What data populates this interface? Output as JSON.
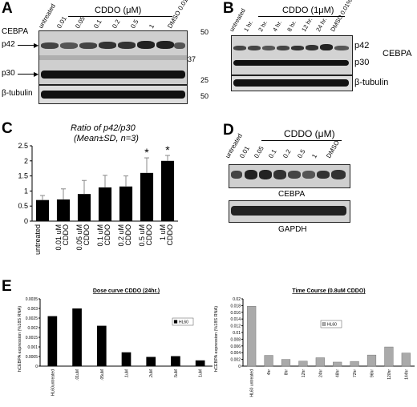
{
  "panels": {
    "A": {
      "letter": "A",
      "treatment_header": "CDDO (μM)",
      "lane_labels": [
        "untreated",
        "0.01",
        "0.05",
        "0.1",
        "0.2",
        "0.5",
        "1",
        "DMSO 0.01%"
      ],
      "protein_label": "CEBPA",
      "band_labels": [
        "p42",
        "p30",
        "β-tubulin"
      ],
      "markers": [
        "50",
        "37",
        "25",
        "50"
      ]
    },
    "B": {
      "letter": "B",
      "treatment_header": "CDDO (1μM)",
      "lane_labels": [
        "untreated",
        "1 hr.",
        "2 hr.",
        "4 hr.",
        "8 hr.",
        "12 hr.",
        "24 hr.",
        "DMSO 0.01%"
      ],
      "band_labels": [
        "p42",
        "p30",
        "β-tubulin"
      ],
      "protein_label": "CEBPA"
    },
    "C": {
      "letter": "C",
      "title_line1": "Ratio of p42/p30",
      "title_line2": "(Mean±SD, n=3)"
    },
    "D": {
      "letter": "D",
      "treatment_header": "CDDO (μM)",
      "lane_labels": [
        "untreated",
        "0.01",
        "0.05",
        "0.1",
        "0.2",
        "0.5",
        "1",
        "DMSO"
      ],
      "blot_labels": [
        "CEBPA",
        "GAPDH"
      ]
    },
    "E": {
      "letter": "E"
    }
  },
  "chart_data": [
    {
      "type": "bar",
      "title": "Ratio of p42/p30 (Mean±SD, n=3)",
      "categories": [
        "untreated",
        "0.01 uM CDDO",
        "0.05 uM CDDO",
        "0.1 uM CDDO",
        "0.2 uM CDDO",
        "0.5 uM CDDO",
        "1 uM CDDO"
      ],
      "values": [
        0.7,
        0.72,
        0.9,
        1.12,
        1.15,
        1.6,
        2.0
      ],
      "errors": [
        0.15,
        0.35,
        0.45,
        0.4,
        0.35,
        0.5,
        0.18
      ],
      "significant": [
        "",
        "",
        "",
        "",
        "",
        "*",
        "*"
      ],
      "ylim": [
        0,
        2.5
      ],
      "yticks": [
        "0",
        "0.5",
        "1",
        "1.5",
        "2",
        "2.5"
      ],
      "color": "#000000"
    },
    {
      "type": "bar",
      "title": "Dose curve CDDO (24hr.)",
      "categories": [
        "HL60untreated",
        ".01uM",
        ".05uM",
        ".1uM",
        ".2uM",
        ".5uM",
        "1uM"
      ],
      "values": [
        0.0026,
        0.003,
        0.0021,
        0.00072,
        0.00048,
        0.00052,
        0.0003
      ],
      "ylabel": "hCEBPA expression (%18S RNA)",
      "ylim": [
        0,
        0.0035
      ],
      "yticks": [
        "0",
        "0.0005",
        "0.001",
        "0.0015",
        "0.002",
        "0.0025",
        "0.003",
        "0.0035"
      ],
      "legend": "HL60",
      "color": "#000000"
    },
    {
      "type": "bar",
      "title": "Time Course (0.8uM CDDO)",
      "categories": [
        "HL60 untreated",
        "4hr",
        "8hr",
        "12hr",
        "24hr",
        "48hr",
        "72hr",
        "96hr",
        "120hr",
        "144hr"
      ],
      "values": [
        0.0178,
        0.0032,
        0.002,
        0.0015,
        0.0025,
        0.0012,
        0.0014,
        0.0033,
        0.0057,
        0.0039
      ],
      "ylabel": "hCEBPA expression (%18S RNA)",
      "ylim": [
        0,
        0.02
      ],
      "yticks": [
        "0",
        "0.002",
        "0.004",
        "0.006",
        "0.008",
        "0.01",
        "0.012",
        "0.014",
        "0.016",
        "0.018",
        "0.02"
      ],
      "legend": "HL60",
      "color": "#aaaaaa"
    }
  ]
}
